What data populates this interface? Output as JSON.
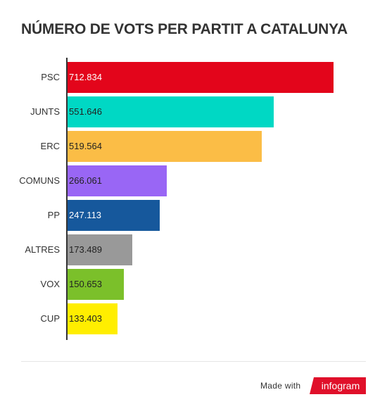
{
  "chart_data": {
    "type": "bar",
    "orientation": "horizontal",
    "title": "NÚMERO DE VOTS PER PARTIT A CATALUNYA",
    "xlabel": "",
    "ylabel": "",
    "categories": [
      "PSC",
      "JUNTS",
      "ERC",
      "COMUNS",
      "PP",
      "ALTRES",
      "VOX",
      "CUP"
    ],
    "values": [
      712834,
      551646,
      519564,
      266061,
      247113,
      173489,
      150653,
      133403
    ],
    "value_labels": [
      "712.834",
      "551.646",
      "519.564",
      "266.061",
      "247.113",
      "173.489",
      "150.653",
      "133.403"
    ],
    "colors": [
      "#e3051b",
      "#00d8c4",
      "#fbbd46",
      "#9966f5",
      "#16589c",
      "#999999",
      "#7bc02a",
      "#ffee00"
    ],
    "label_colors": [
      "#ffffff",
      "#222222",
      "#222222",
      "#222222",
      "#ffffff",
      "#222222",
      "#222222",
      "#222222"
    ],
    "xlim": [
      0,
      720000
    ],
    "grid": false,
    "legend": "none"
  },
  "footer": {
    "made_with": "Made with",
    "brand": "infogram"
  }
}
